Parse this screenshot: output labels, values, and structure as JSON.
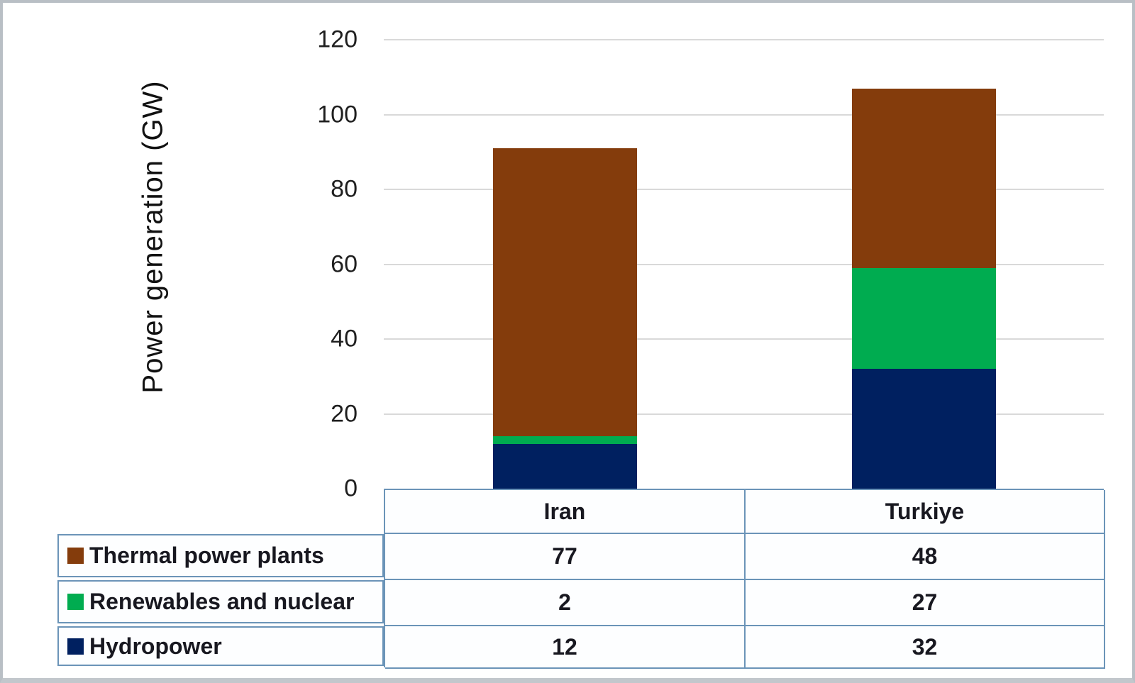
{
  "chart_data": {
    "type": "bar",
    "stacked": true,
    "categories": [
      "Iran",
      "Turkiye"
    ],
    "series": [
      {
        "name": "Thermal power plants",
        "color": "#843C0C",
        "values": [
          77,
          48
        ]
      },
      {
        "name": "Renewables and nuclear",
        "color": "#00AC50",
        "values": [
          2,
          27
        ]
      },
      {
        "name": "Hydropower",
        "color": "#002060",
        "values": [
          12,
          32
        ]
      }
    ],
    "title": "",
    "xlabel": "",
    "ylabel": "Power generation (GW)",
    "ylim": [
      0,
      120
    ],
    "yticks": [
      0,
      20,
      40,
      60,
      80,
      100,
      120
    ],
    "grid": true,
    "legend_position": "left-of-data-table",
    "data_table_shown": true
  }
}
